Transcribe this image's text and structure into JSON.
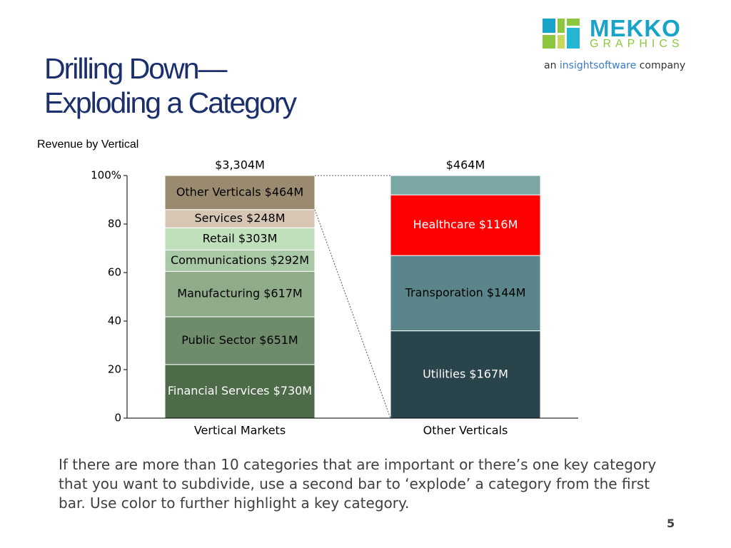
{
  "slide": {
    "title_line1": "Drilling Down—",
    "title_line2": "Exploding a Category",
    "body": "If there are more than 10 categories that are important or there’s one key category that you want to subdivide, use a second bar to ‘explode’ a category from the first bar.  Use color to further highlight a key category.",
    "page_number": "5"
  },
  "logo": {
    "main": "MEKKO",
    "sub": "GRAPHICS",
    "tag_prefix": "an",
    "tag_brand": "insightsoftware",
    "tag_suffix": "company",
    "colors": [
      "#8dc63f",
      "#1aa3c9",
      "#c8d95a",
      "#23b5d3"
    ]
  },
  "chart_data": {
    "type": "bar",
    "stacked": "100%",
    "title": "Revenue by Vertical",
    "ylim": [
      0,
      100
    ],
    "yticks": [
      "0",
      "20",
      "40",
      "60",
      "80",
      "100%"
    ],
    "categories": [
      "Vertical Markets",
      "Other Verticals"
    ],
    "totals": [
      "$3,304M",
      "$464M"
    ],
    "bars": [
      {
        "category": "Vertical Markets",
        "segments": [
          {
            "label": "Financial Services $730M",
            "value": 730,
            "color": "#4d6b49",
            "text_color": "#ffffff"
          },
          {
            "label": "Public Sector $651M",
            "value": 651,
            "color": "#6e8c6b",
            "text_color": "#000000"
          },
          {
            "label": "Manufacturing $617M",
            "value": 617,
            "color": "#8fab8a",
            "text_color": "#000000"
          },
          {
            "label": "Communications $292M",
            "value": 292,
            "color": "#a9c9a6",
            "text_color": "#000000"
          },
          {
            "label": "Retail $303M",
            "value": 303,
            "color": "#c0e0bb",
            "text_color": "#000000"
          },
          {
            "label": "Services $248M",
            "value": 248,
            "color": "#d7c6b4",
            "text_color": "#000000"
          },
          {
            "label": "Other Verticals $464M",
            "value": 464,
            "color": "#9a8a70",
            "text_color": "#000000"
          }
        ]
      },
      {
        "category": "Other Verticals",
        "segments": [
          {
            "label": "Utilities $167M",
            "value": 167,
            "color": "#29444a",
            "text_color": "#ffffff"
          },
          {
            "label": "Transporation $144M",
            "value": 144,
            "color": "#5a858a",
            "text_color": "#000000"
          },
          {
            "label": "Healthcare $116M",
            "value": 116,
            "color": "#ff0000",
            "text_color": "#ffffff"
          },
          {
            "label": "",
            "value": 37,
            "color": "#7aa6a6",
            "text_color": "#000000"
          }
        ]
      }
    ]
  }
}
